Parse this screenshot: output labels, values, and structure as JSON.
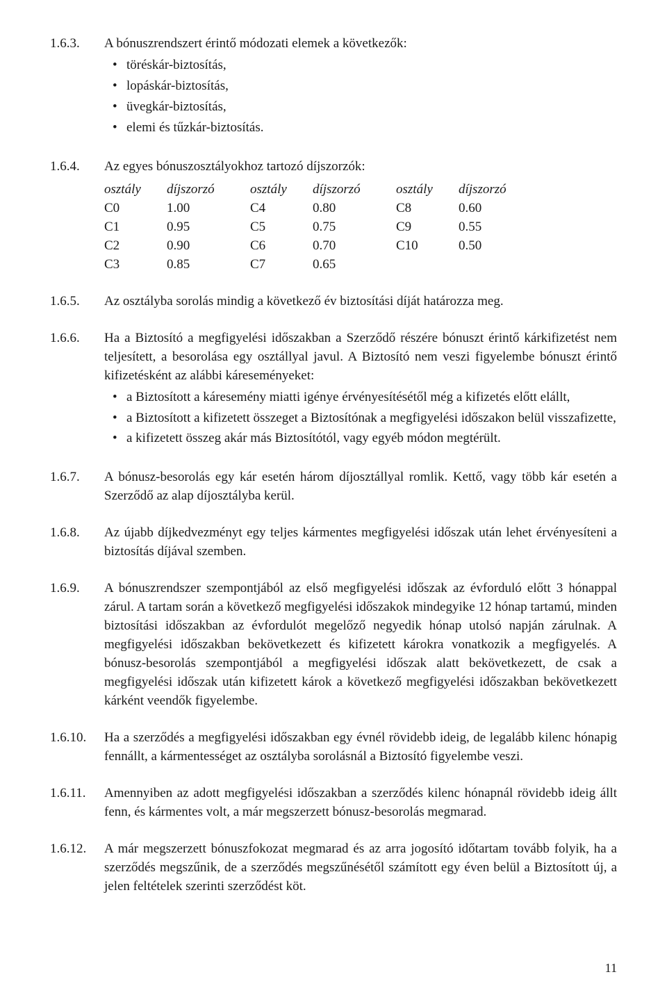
{
  "sections": {
    "s163": {
      "num": "1.6.3.",
      "intro": "A bónuszrendszert érintő módozati elemek a következők:",
      "bullets": [
        "töréskár-biztosítás,",
        "lopáskár-biztosítás,",
        "üvegkár-biztosítás,",
        "elemi és tűzkár-biztosítás."
      ]
    },
    "s164": {
      "num": "1.6.4.",
      "intro": "Az egyes bónuszosztályokhoz tartozó díjszorzók:",
      "table": {
        "headers": [
          "osztály",
          "díjszorzó",
          "osztály",
          "díjszorzó",
          "osztály",
          "díjszorzó"
        ],
        "rows": [
          [
            "C0",
            "1.00",
            "C4",
            "0.80",
            "C8",
            "0.60"
          ],
          [
            "C1",
            "0.95",
            "C5",
            "0.75",
            "C9",
            "0.55"
          ],
          [
            "C2",
            "0.90",
            "C6",
            "0.70",
            "C10",
            "0.50"
          ],
          [
            "C3",
            "0.85",
            "C7",
            "0.65",
            "",
            ""
          ]
        ]
      }
    },
    "s165": {
      "num": "1.6.5.",
      "text": "Az osztályba sorolás mindig a következő év biztosítási díját határozza meg."
    },
    "s166": {
      "num": "1.6.6.",
      "intro": "Ha a Biztosító a megfigyelési időszakban a Szerződő részére bónuszt érintő kárkifizetést nem teljesített, a besorolása egy osztállyal javul. A Biztosító nem veszi figyelembe bónuszt érintő kifizetésként az alábbi káreseményeket:",
      "bullets": [
        "a Biztosított a káresemény miatti igénye érvényesítésétől még a kifizetés előtt elállt,",
        "a Biztosított a kifizetett összeget a Biztosítónak a megfigyelési időszakon belül visszafizette,",
        "a kifizetett összeg akár más Biztosítótól, vagy egyéb módon megtérült."
      ]
    },
    "s167": {
      "num": "1.6.7.",
      "text": "A bónusz-besorolás egy kár esetén három díjosztállyal romlik. Kettő, vagy több kár esetén a Szerződő az alap díjosztályba kerül."
    },
    "s168": {
      "num": "1.6.8.",
      "text": "Az újabb díjkedvezményt egy teljes kármentes megfigyelési időszak után lehet érvényesíteni a biztosítás díjával szemben."
    },
    "s169": {
      "num": "1.6.9.",
      "text": "A bónuszrendszer szempontjából az első megfigyelési időszak az évforduló előtt 3 hónappal zárul. A tartam során a következő megfigyelési időszakok mindegyike 12 hónap tartamú, minden biztosítási időszakban az évfordulót megelőző negyedik hónap utolsó napján zárulnak. A megfigyelési időszakban bekövetkezett és kifizetett károkra vonatkozik a megfigyelés. A bónusz-besorolás szempontjából a megfigyelési időszak alatt bekövetkezett, de csak a megfigyelési időszak után kifizetett károk a következő megfigyelési időszakban bekövetkezett kárként veendők figyelembe."
    },
    "s1610": {
      "num": "1.6.10.",
      "text": "Ha a szerződés a megfigyelési időszakban egy évnél rövidebb ideig, de legalább kilenc hónapig fennállt, a kármentességet az osztályba sorolásnál a Biztosító figyelembe veszi."
    },
    "s1611": {
      "num": "1.6.11.",
      "text": "Amennyiben az adott megfigyelési időszakban a szerződés kilenc hónapnál rövidebb ideig állt fenn, és kármentes volt, a már megszerzett bónusz-besorolás megmarad."
    },
    "s1612": {
      "num": "1.6.12.",
      "text": "A már megszerzett bónuszfokozat megmarad és az arra jogosító időtartam tovább folyik, ha a szerződés megszűnik, de a szerződés megszűnésétől számított egy éven belül a Biztosított új, a jelen feltételek szerinti szerződést köt."
    }
  },
  "page_number": "11"
}
